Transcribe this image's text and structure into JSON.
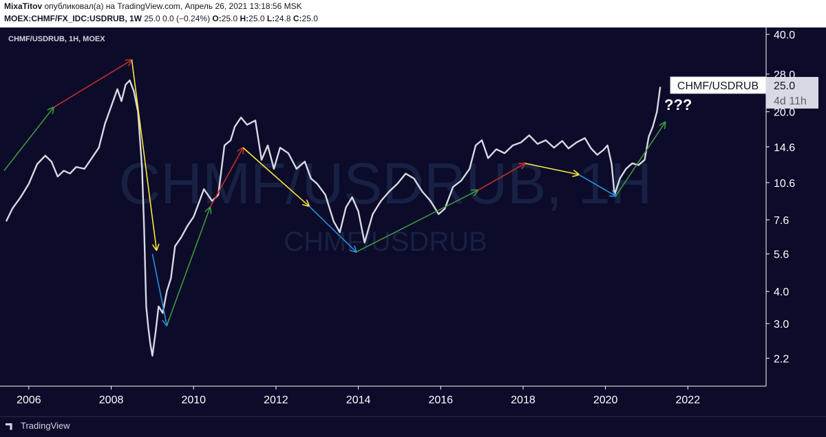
{
  "header": {
    "author": "MixaTitov",
    "published_text": "опубликовал(а) на TradingView.com, Апрель 26, 2021 13:18:56 MSK",
    "symbol": "MOEX:CHMF/FX_IDC:USDRUB, 1W",
    "quote_values": "25.0 0.0 (−0.24%)",
    "o_label": "O:",
    "o_value": "25.0",
    "h_label": "H:",
    "h_value": "25.0",
    "l_label": "L:",
    "l_value": "24.8",
    "c_label": "C:",
    "c_value": "25.0"
  },
  "chart_overlay": {
    "legend": "CHMF/USDRUB, 1H, MOEX",
    "watermark_main": "CHMF/USDRUB, 1H",
    "watermark_sub": "CHMF/USDRUB",
    "price_tag_symbol": "CHMF/USDRUB",
    "price_tag_value": "25.0",
    "price_tag_countdown": "4d 11h",
    "question_annotation": "???"
  },
  "footer": {
    "brand": "TradingView"
  },
  "colors": {
    "background": "#0c0b2a",
    "price_line": "#d9d9e3",
    "arrow_green": "#3d9a3d",
    "arrow_red": "#c0302a",
    "arrow_yellow": "#ffe839",
    "arrow_blue": "#2a8fe0"
  },
  "chart_data": {
    "type": "line",
    "log_scale": true,
    "xlim": [
      2005.3,
      2023.9
    ],
    "ylim": [
      1.95,
      41.5
    ],
    "y_ticks": [
      40.0,
      28.0,
      20.0,
      14.6,
      10.6,
      7.6,
      5.6,
      4.0,
      3.0,
      2.2
    ],
    "y_tick_labels": [
      "40.0",
      "28.0",
      "20.0",
      "14.6",
      "10.6",
      "7.6",
      "5.6",
      "4.0",
      "3.0",
      "2.2"
    ],
    "x_ticks": [
      2006,
      2008,
      2010,
      2012,
      2014,
      2016,
      2018,
      2020,
      2022
    ],
    "x_tick_labels": [
      "2006",
      "2008",
      "2010",
      "2012",
      "2014",
      "2016",
      "2018",
      "2020",
      "2022"
    ],
    "grid": false,
    "series": [
      {
        "name": "CHMF/USDRUB",
        "points": [
          [
            2005.45,
            7.5
          ],
          [
            2005.6,
            8.4
          ],
          [
            2005.8,
            9.3
          ],
          [
            2006.0,
            10.5
          ],
          [
            2006.2,
            12.5
          ],
          [
            2006.4,
            13.5
          ],
          [
            2006.55,
            12.8
          ],
          [
            2006.7,
            11.2
          ],
          [
            2006.85,
            11.8
          ],
          [
            2007.0,
            11.5
          ],
          [
            2007.15,
            12.2
          ],
          [
            2007.35,
            12.0
          ],
          [
            2007.5,
            13.0
          ],
          [
            2007.7,
            14.5
          ],
          [
            2007.85,
            18.0
          ],
          [
            2008.0,
            21.0
          ],
          [
            2008.15,
            24.5
          ],
          [
            2008.25,
            22.0
          ],
          [
            2008.35,
            25.5
          ],
          [
            2008.45,
            26.5
          ],
          [
            2008.55,
            24.0
          ],
          [
            2008.65,
            20.0
          ],
          [
            2008.75,
            12.0
          ],
          [
            2008.8,
            7.0
          ],
          [
            2008.85,
            3.5
          ],
          [
            2008.9,
            2.9
          ],
          [
            2008.95,
            2.5
          ],
          [
            2009.0,
            2.25
          ],
          [
            2009.08,
            2.8
          ],
          [
            2009.15,
            3.5
          ],
          [
            2009.25,
            3.3
          ],
          [
            2009.35,
            4.0
          ],
          [
            2009.45,
            4.5
          ],
          [
            2009.55,
            6.0
          ],
          [
            2009.7,
            6.5
          ],
          [
            2009.85,
            7.2
          ],
          [
            2010.0,
            7.8
          ],
          [
            2010.1,
            8.6
          ],
          [
            2010.25,
            10.0
          ],
          [
            2010.45,
            9.0
          ],
          [
            2010.6,
            9.5
          ],
          [
            2010.75,
            14.8
          ],
          [
            2010.9,
            15.5
          ],
          [
            2011.0,
            17.5
          ],
          [
            2011.15,
            19.0
          ],
          [
            2011.3,
            17.8
          ],
          [
            2011.5,
            18.5
          ],
          [
            2011.65,
            13.0
          ],
          [
            2011.8,
            14.8
          ],
          [
            2011.95,
            12.0
          ],
          [
            2012.1,
            14.5
          ],
          [
            2012.3,
            13.8
          ],
          [
            2012.5,
            12.0
          ],
          [
            2012.7,
            12.8
          ],
          [
            2012.85,
            11.0
          ],
          [
            2013.0,
            10.5
          ],
          [
            2013.2,
            9.5
          ],
          [
            2013.4,
            7.5
          ],
          [
            2013.55,
            6.8
          ],
          [
            2013.7,
            8.5
          ],
          [
            2013.85,
            9.3
          ],
          [
            2014.0,
            8.2
          ],
          [
            2014.15,
            6.2
          ],
          [
            2014.35,
            8.0
          ],
          [
            2014.55,
            9.0
          ],
          [
            2014.75,
            9.8
          ],
          [
            2014.95,
            10.5
          ],
          [
            2015.15,
            11.5
          ],
          [
            2015.35,
            11.0
          ],
          [
            2015.55,
            9.8
          ],
          [
            2015.75,
            9.0
          ],
          [
            2015.95,
            8.0
          ],
          [
            2016.1,
            8.4
          ],
          [
            2016.3,
            10.2
          ],
          [
            2016.5,
            10.8
          ],
          [
            2016.7,
            12.0
          ],
          [
            2016.85,
            14.8
          ],
          [
            2017.0,
            15.5
          ],
          [
            2017.15,
            13.2
          ],
          [
            2017.35,
            14.3
          ],
          [
            2017.55,
            13.8
          ],
          [
            2017.75,
            14.8
          ],
          [
            2017.95,
            15.2
          ],
          [
            2018.15,
            16.2
          ],
          [
            2018.35,
            15.0
          ],
          [
            2018.55,
            15.5
          ],
          [
            2018.75,
            14.5
          ],
          [
            2018.95,
            15.4
          ],
          [
            2019.1,
            14.4
          ],
          [
            2019.3,
            15.2
          ],
          [
            2019.5,
            15.8
          ],
          [
            2019.65,
            14.4
          ],
          [
            2019.8,
            13.6
          ],
          [
            2019.95,
            14.2
          ],
          [
            2020.05,
            14.8
          ],
          [
            2020.15,
            12.5
          ],
          [
            2020.22,
            9.5
          ],
          [
            2020.35,
            11.0
          ],
          [
            2020.5,
            12.0
          ],
          [
            2020.65,
            12.6
          ],
          [
            2020.8,
            12.4
          ],
          [
            2020.95,
            13.0
          ],
          [
            2021.05,
            16.0
          ],
          [
            2021.15,
            17.5
          ],
          [
            2021.25,
            20.0
          ],
          [
            2021.3,
            23.0
          ],
          [
            2021.33,
            25.0
          ]
        ]
      }
    ],
    "arrows": [
      {
        "color": "green",
        "from": [
          2005.4,
          11.8
        ],
        "to": [
          2006.6,
          20.8
        ]
      },
      {
        "color": "red",
        "from": [
          2006.6,
          20.8
        ],
        "to": [
          2008.5,
          31.8
        ]
      },
      {
        "color": "yellow",
        "from": [
          2008.5,
          31.8
        ],
        "to": [
          2009.1,
          5.8
        ]
      },
      {
        "color": "blue",
        "from": [
          2009.0,
          5.6
        ],
        "to": [
          2009.35,
          2.95
        ]
      },
      {
        "color": "green",
        "from": [
          2009.35,
          2.95
        ],
        "to": [
          2010.4,
          8.5
        ]
      },
      {
        "color": "red",
        "from": [
          2010.4,
          8.5
        ],
        "to": [
          2011.2,
          14.5
        ]
      },
      {
        "color": "yellow",
        "from": [
          2011.2,
          14.5
        ],
        "to": [
          2012.8,
          8.6
        ]
      },
      {
        "color": "blue",
        "from": [
          2012.8,
          8.6
        ],
        "to": [
          2013.95,
          5.7
        ]
      },
      {
        "color": "green",
        "from": [
          2013.95,
          5.7
        ],
        "to": [
          2016.9,
          9.9
        ]
      },
      {
        "color": "red",
        "from": [
          2016.9,
          9.9
        ],
        "to": [
          2018.05,
          12.6
        ]
      },
      {
        "color": "yellow",
        "from": [
          2018.05,
          12.6
        ],
        "to": [
          2019.35,
          11.4
        ]
      },
      {
        "color": "blue",
        "from": [
          2019.35,
          11.4
        ],
        "to": [
          2020.25,
          9.4
        ]
      },
      {
        "color": "green",
        "from": [
          2020.25,
          9.4
        ],
        "to": [
          2021.45,
          18.2
        ]
      }
    ]
  }
}
